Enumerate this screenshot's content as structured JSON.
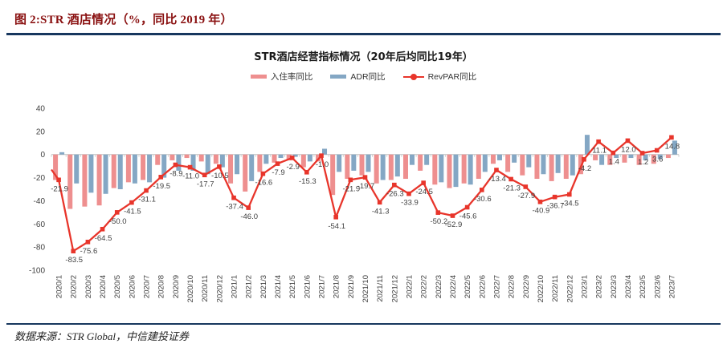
{
  "header": {
    "title": "图 2:STR 酒店情况（%，同比 2019 年）"
  },
  "footer": {
    "source": "数据来源：STR Global，中信建投证券"
  },
  "colors": {
    "header_title": "#8a1111",
    "rule_navy": "#17375e",
    "occupancy_bar": "#ee8f8f",
    "adr_bar": "#84a7c4",
    "revpar_line": "#e8352b",
    "axis_gray": "#bfbfbf",
    "label_text": "#404040"
  },
  "chart_data": {
    "type": "bar",
    "subtype": "combo-bar-line",
    "title": "STR酒店经营指标情况（20年后均同比19年）",
    "legend_position": "top",
    "grid": false,
    "ylim": [
      -100,
      40
    ],
    "yticks": [
      40,
      20,
      0,
      -20,
      -40,
      -60,
      -80,
      -100
    ],
    "xlabel": "",
    "ylabel": "",
    "categories": [
      "2020/1",
      "2020/2",
      "2020/3",
      "2020/4",
      "2020/5",
      "2020/6",
      "2020/7",
      "2020/8",
      "2020/9",
      "2020/10",
      "2020/11",
      "2020/12",
      "2021/1",
      "2021/2",
      "2021/3",
      "2021/4",
      "2021/5",
      "2021/6",
      "2021/7",
      "2021/8",
      "2021/9",
      "2021/10",
      "2021/11",
      "2021/12",
      "2022/1",
      "2022/2",
      "2022/3",
      "2022/4",
      "2022/5",
      "2022/6",
      "2022/7",
      "2022/8",
      "2022/9",
      "2022/10",
      "2022/11",
      "2022/12",
      "2023/1",
      "2023/2",
      "2023/3",
      "2023/4",
      "2023/5",
      "2023/6",
      "2023/7"
    ],
    "series": [
      {
        "name": "入住率同比",
        "type": "bar",
        "color": "#ee8f8f",
        "values": [
          -22,
          -47,
          -45,
          -44,
          -29,
          -24,
          -22,
          -9,
          -5,
          -3,
          -6,
          -8,
          -25,
          -32,
          -15,
          -7,
          -5,
          -11,
          -6,
          -35,
          -21,
          -18,
          -25,
          -22,
          -21,
          -14,
          -26,
          -29,
          -25,
          -21,
          -8,
          -15,
          -18,
          -21,
          -23,
          -21,
          -17,
          -5,
          -9,
          -7,
          -9,
          -8,
          -3
        ]
      },
      {
        "name": "ADR同比",
        "type": "bar",
        "color": "#84a7c4",
        "values": [
          2,
          -25,
          -33,
          -34,
          -30,
          -25,
          -24,
          -20,
          -14,
          -14,
          -17,
          -11,
          -17,
          -23,
          -8,
          -3,
          -2,
          -6,
          5,
          -15,
          -14,
          -15,
          -22,
          -19,
          -9,
          -9,
          -24,
          -28,
          -26,
          -15,
          -5,
          -7,
          -11,
          -17,
          -16,
          -18,
          17,
          -9,
          -3,
          -3,
          -5,
          -4,
          12
        ]
      },
      {
        "name": "RevPAR同比",
        "type": "line",
        "color": "#e8352b",
        "marker": "square",
        "data_labels": true,
        "values": [
          -21.9,
          -83.5,
          -75.6,
          -64.5,
          -50.0,
          -41.5,
          -31.1,
          -19.5,
          -8.9,
          -11.0,
          -17.7,
          -10.5,
          -37.4,
          -46.0,
          -16.6,
          -7.9,
          -2.9,
          -15.3,
          -1.0,
          -54.1,
          -21.9,
          -19.7,
          -41.3,
          -26.3,
          -33.9,
          -24.5,
          -50.2,
          -52.9,
          -45.6,
          -30.6,
          -13.4,
          -21.3,
          -27.9,
          -40.9,
          -36.7,
          -34.5,
          -4.2,
          11.1,
          1.4,
          12.0,
          1.2,
          3.6,
          14.8
        ]
      }
    ],
    "line_start_edge_value": -13
  }
}
